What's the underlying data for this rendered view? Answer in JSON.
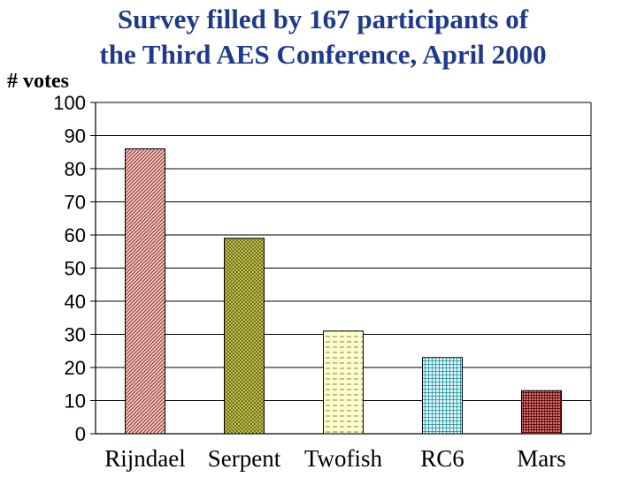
{
  "chart_data": {
    "type": "bar",
    "title": "Survey filled by 167 participants of",
    "subtitle": "the Third AES Conference, April 2000",
    "ylabel": "# votes",
    "xlabel": "",
    "categories": [
      "Rijndael",
      "Serpent",
      "Twofish",
      "RC6",
      "Mars"
    ],
    "values": [
      86,
      59,
      31,
      23,
      13
    ],
    "ylim": [
      0,
      100
    ],
    "yticks": [
      0,
      10,
      20,
      30,
      40,
      50,
      60,
      70,
      80,
      90,
      100
    ],
    "grid": true,
    "bar_styles": [
      {
        "pattern": "diagonal-hatch",
        "fg": "#8b2a2a",
        "bg": "#f6d0c8"
      },
      {
        "pattern": "crosshatch",
        "fg": "#5c5c00",
        "bg": "#d8d870"
      },
      {
        "pattern": "horizontal-dash",
        "fg": "#7a7a7a",
        "bg": "#ffffc8"
      },
      {
        "pattern": "grid",
        "fg": "#1a8a9a",
        "bg": "#dff7fb"
      },
      {
        "pattern": "dense-grid",
        "fg": "#6a0a0a",
        "bg": "#c87878"
      }
    ]
  }
}
